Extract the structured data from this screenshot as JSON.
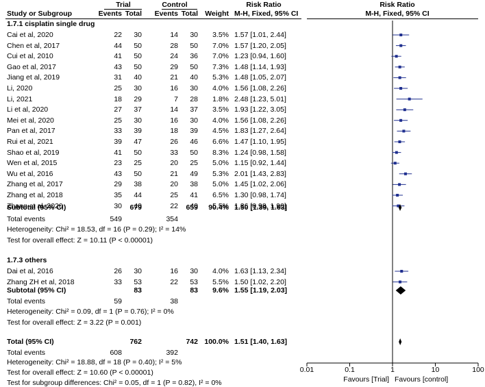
{
  "header": {
    "col_study": "Study or Subgroup",
    "trial_group": "Trial",
    "control_group": "Control",
    "events": "Events",
    "total": "Total",
    "weight": "Weight",
    "risk_ratio": "Risk Ratio",
    "method": "M-H, Fixed, 95% CI"
  },
  "subgroups": [
    {
      "title": "1.7.1 cisplatin single drug",
      "studies": [
        {
          "name": "Cai et al, 2020",
          "te": "22",
          "tt": "30",
          "ce": "14",
          "ct": "30",
          "w": "3.5%",
          "rr": "1.57 [1.01, 2.44]"
        },
        {
          "name": "Chen et al, 2017",
          "te": "44",
          "tt": "50",
          "ce": "28",
          "ct": "50",
          "w": "7.0%",
          "rr": "1.57 [1.20, 2.05]"
        },
        {
          "name": "Cui et al, 2010",
          "te": "41",
          "tt": "50",
          "ce": "24",
          "ct": "36",
          "w": "7.0%",
          "rr": "1.23 [0.94, 1.60]"
        },
        {
          "name": "Gao et al, 2017",
          "te": "43",
          "tt": "50",
          "ce": "29",
          "ct": "50",
          "w": "7.3%",
          "rr": "1.48 [1.14, 1.93]"
        },
        {
          "name": "Jiang et al, 2019",
          "te": "31",
          "tt": "40",
          "ce": "21",
          "ct": "40",
          "w": "5.3%",
          "rr": "1.48 [1.05, 2.07]"
        },
        {
          "name": "Li, 2020",
          "te": "25",
          "tt": "30",
          "ce": "16",
          "ct": "30",
          "w": "4.0%",
          "rr": "1.56 [1.08, 2.26]"
        },
        {
          "name": "Li, 2021",
          "te": "18",
          "tt": "29",
          "ce": "7",
          "ct": "28",
          "w": "1.8%",
          "rr": "2.48 [1.23, 5.01]"
        },
        {
          "name": "Li et al, 2020",
          "te": "27",
          "tt": "37",
          "ce": "14",
          "ct": "37",
          "w": "3.5%",
          "rr": "1.93 [1.22, 3.05]"
        },
        {
          "name": "Mei et al, 2020",
          "te": "25",
          "tt": "30",
          "ce": "16",
          "ct": "30",
          "w": "4.0%",
          "rr": "1.56 [1.08, 2.26]"
        },
        {
          "name": "Pan et al, 2017",
          "te": "33",
          "tt": "39",
          "ce": "18",
          "ct": "39",
          "w": "4.5%",
          "rr": "1.83 [1.27, 2.64]"
        },
        {
          "name": "Rui et al, 2021",
          "te": "39",
          "tt": "47",
          "ce": "26",
          "ct": "46",
          "w": "6.6%",
          "rr": "1.47 [1.10, 1.95]"
        },
        {
          "name": "Shao et al, 2019",
          "te": "41",
          "tt": "50",
          "ce": "33",
          "ct": "50",
          "w": "8.3%",
          "rr": "1.24 [0.98, 1.58]"
        },
        {
          "name": "Wen et al, 2015",
          "te": "23",
          "tt": "25",
          "ce": "20",
          "ct": "25",
          "w": "5.0%",
          "rr": "1.15 [0.92, 1.44]"
        },
        {
          "name": "Wu et al, 2016",
          "te": "43",
          "tt": "50",
          "ce": "21",
          "ct": "49",
          "w": "5.3%",
          "rr": "2.01 [1.43, 2.83]"
        },
        {
          "name": "Zhang et al, 2017",
          "te": "29",
          "tt": "38",
          "ce": "20",
          "ct": "38",
          "w": "5.0%",
          "rr": "1.45 [1.02, 2.06]"
        },
        {
          "name": "Zhang et al, 2018",
          "te": "35",
          "tt": "44",
          "ce": "25",
          "ct": "41",
          "w": "6.5%",
          "rr": "1.30 [0.98, 1.74]"
        },
        {
          "name": "Zhang et al, 2020",
          "te": "30",
          "tt": "40",
          "ce": "22",
          "ct": "40",
          "w": "5.5%",
          "rr": "1.36 [0.98, 1.90]"
        }
      ],
      "subtotal": {
        "label": "Subtotal (95% CI)",
        "tt": "679",
        "ct": "659",
        "w": "90.4%",
        "rr": "1.50 [1.39, 1.63]"
      },
      "total_events": {
        "label": "Total events",
        "te": "549",
        "ce": "354"
      },
      "heterogeneity": "Heterogeneity: Chi² = 18.53, df = 16 (P = 0.29); I² = 14%",
      "overall": "Test for overall effect: Z = 10.11 (P < 0.00001)"
    },
    {
      "title": "1.7.3 others",
      "studies": [
        {
          "name": "Dai et al, 2016",
          "te": "26",
          "tt": "30",
          "ce": "16",
          "ct": "30",
          "w": "4.0%",
          "rr": "1.63 [1.13, 2.34]"
        },
        {
          "name": "Zhang ZH et al, 2018",
          "te": "33",
          "tt": "53",
          "ce": "22",
          "ct": "53",
          "w": "5.5%",
          "rr": "1.50 [1.02, 2.20]"
        }
      ],
      "subtotal": {
        "label": "Subtotal (95% CI)",
        "tt": "83",
        "ct": "83",
        "w": "9.6%",
        "rr": "1.55 [1.19, 2.03]"
      },
      "total_events": {
        "label": "Total events",
        "te": "59",
        "ce": "38"
      },
      "heterogeneity": "Heterogeneity: Chi² = 0.09, df = 1 (P = 0.76); I² = 0%",
      "overall": "Test for overall effect: Z = 3.22 (P = 0.001)"
    }
  ],
  "total": {
    "label": "Total (95% CI)",
    "tt": "762",
    "ct": "742",
    "w": "100.0%",
    "rr": "1.51 [1.40, 1.63]"
  },
  "total_events": {
    "label": "Total events",
    "te": "608",
    "ce": "392"
  },
  "heterogeneity": "Heterogeneity: Chi² = 18.88, df = 18 (P = 0.40); I² = 5%",
  "overall": "Test for overall effect: Z = 10.60 (P < 0.00001)",
  "subgroup_diff": "Test for subgroup differences: Chi² = 0.05, df = 1 (P = 0.82), I² = 0%",
  "chart_data": {
    "type": "scatter",
    "title": "Risk Ratio",
    "subtitle": "M-H, Fixed, 95% CI",
    "x_scale": "log",
    "xlim": [
      0.01,
      100
    ],
    "x_ticks": [
      "0.01",
      "0.1",
      "1",
      "10",
      "100"
    ],
    "x_tick_values": [
      0.01,
      0.1,
      1,
      10,
      100
    ],
    "xlabel_left": "Favours [Trial]",
    "xlabel_right": "Favours [control]",
    "reference_line": 1,
    "study_color": "#1f2f8f",
    "summary_color": "#000000",
    "studies": [
      {
        "name": "Cai et al, 2020",
        "rr": 1.57,
        "lo": 1.01,
        "hi": 2.44
      },
      {
        "name": "Chen et al, 2017",
        "rr": 1.57,
        "lo": 1.2,
        "hi": 2.05
      },
      {
        "name": "Cui et al, 2010",
        "rr": 1.23,
        "lo": 0.94,
        "hi": 1.6
      },
      {
        "name": "Gao et al, 2017",
        "rr": 1.48,
        "lo": 1.14,
        "hi": 1.93
      },
      {
        "name": "Jiang et al, 2019",
        "rr": 1.48,
        "lo": 1.05,
        "hi": 2.07
      },
      {
        "name": "Li, 2020",
        "rr": 1.56,
        "lo": 1.08,
        "hi": 2.26
      },
      {
        "name": "Li, 2021",
        "rr": 2.48,
        "lo": 1.23,
        "hi": 5.01
      },
      {
        "name": "Li et al, 2020",
        "rr": 1.93,
        "lo": 1.22,
        "hi": 3.05
      },
      {
        "name": "Mei et al, 2020",
        "rr": 1.56,
        "lo": 1.08,
        "hi": 2.26
      },
      {
        "name": "Pan et al, 2017",
        "rr": 1.83,
        "lo": 1.27,
        "hi": 2.64
      },
      {
        "name": "Rui et al, 2021",
        "rr": 1.47,
        "lo": 1.1,
        "hi": 1.95
      },
      {
        "name": "Shao et al, 2019",
        "rr": 1.24,
        "lo": 0.98,
        "hi": 1.58
      },
      {
        "name": "Wen et al, 2015",
        "rr": 1.15,
        "lo": 0.92,
        "hi": 1.44
      },
      {
        "name": "Wu et al, 2016",
        "rr": 2.01,
        "lo": 1.43,
        "hi": 2.83
      },
      {
        "name": "Zhang et al, 2017",
        "rr": 1.45,
        "lo": 1.02,
        "hi": 2.06
      },
      {
        "name": "Zhang et al, 2018",
        "rr": 1.3,
        "lo": 0.98,
        "hi": 1.74
      },
      {
        "name": "Zhang et al, 2020",
        "rr": 1.36,
        "lo": 0.98,
        "hi": 1.9
      },
      {
        "name": "Dai et al, 2016",
        "rr": 1.63,
        "lo": 1.13,
        "hi": 2.34
      },
      {
        "name": "Zhang ZH et al, 2018",
        "rr": 1.5,
        "lo": 1.02,
        "hi": 2.2
      }
    ],
    "summaries": [
      {
        "name": "Subtotal 1.7.1",
        "rr": 1.5,
        "lo": 1.39,
        "hi": 1.63
      },
      {
        "name": "Subtotal 1.7.3",
        "rr": 1.55,
        "lo": 1.19,
        "hi": 2.03
      },
      {
        "name": "Total",
        "rr": 1.51,
        "lo": 1.4,
        "hi": 1.63
      }
    ]
  }
}
